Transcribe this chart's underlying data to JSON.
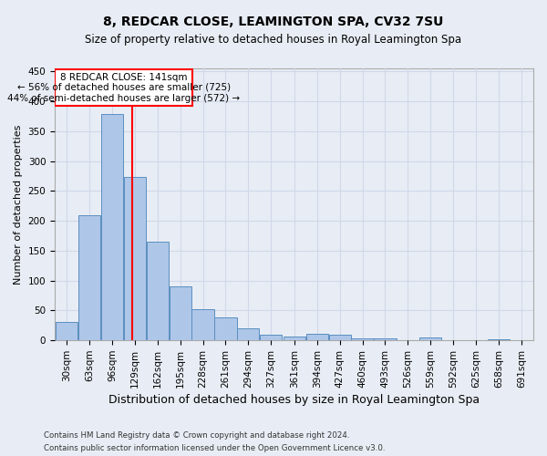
{
  "title1": "8, REDCAR CLOSE, LEAMINGTON SPA, CV32 7SU",
  "title2": "Size of property relative to detached houses in Royal Leamington Spa",
  "xlabel": "Distribution of detached houses by size in Royal Leamington Spa",
  "ylabel": "Number of detached properties",
  "footer1": "Contains HM Land Registry data © Crown copyright and database right 2024.",
  "footer2": "Contains public sector information licensed under the Open Government Licence v3.0.",
  "annotation_line1": "8 REDCAR CLOSE: 141sqm",
  "annotation_line2": "← 56% of detached houses are smaller (725)",
  "annotation_line3": "44% of semi-detached houses are larger (572) →",
  "bins": [
    30,
    63,
    96,
    129,
    162,
    195,
    228,
    261,
    294,
    327,
    361,
    394,
    427,
    460,
    493,
    526,
    559,
    592,
    625,
    658,
    691
  ],
  "bin_labels": [
    "30sqm",
    "63sqm",
    "96sqm",
    "129sqm",
    "162sqm",
    "195sqm",
    "228sqm",
    "261sqm",
    "294sqm",
    "327sqm",
    "361sqm",
    "394sqm",
    "427sqm",
    "460sqm",
    "493sqm",
    "526sqm",
    "559sqm",
    "592sqm",
    "625sqm",
    "658sqm",
    "691sqm"
  ],
  "values": [
    31,
    210,
    378,
    273,
    165,
    90,
    52,
    38,
    20,
    10,
    6,
    11,
    10,
    4,
    4,
    0,
    5,
    1,
    0,
    2,
    0
  ],
  "bar_color": "#aec6e8",
  "bar_edge_color": "#5a8fc0",
  "grid_color": "#d0d8e8",
  "background_color": "#e8edf5",
  "vline_x": 141,
  "vline_color": "red",
  "ylim": [
    0,
    455
  ],
  "yticks": [
    0,
    50,
    100,
    150,
    200,
    250,
    300,
    350,
    400,
    450
  ]
}
